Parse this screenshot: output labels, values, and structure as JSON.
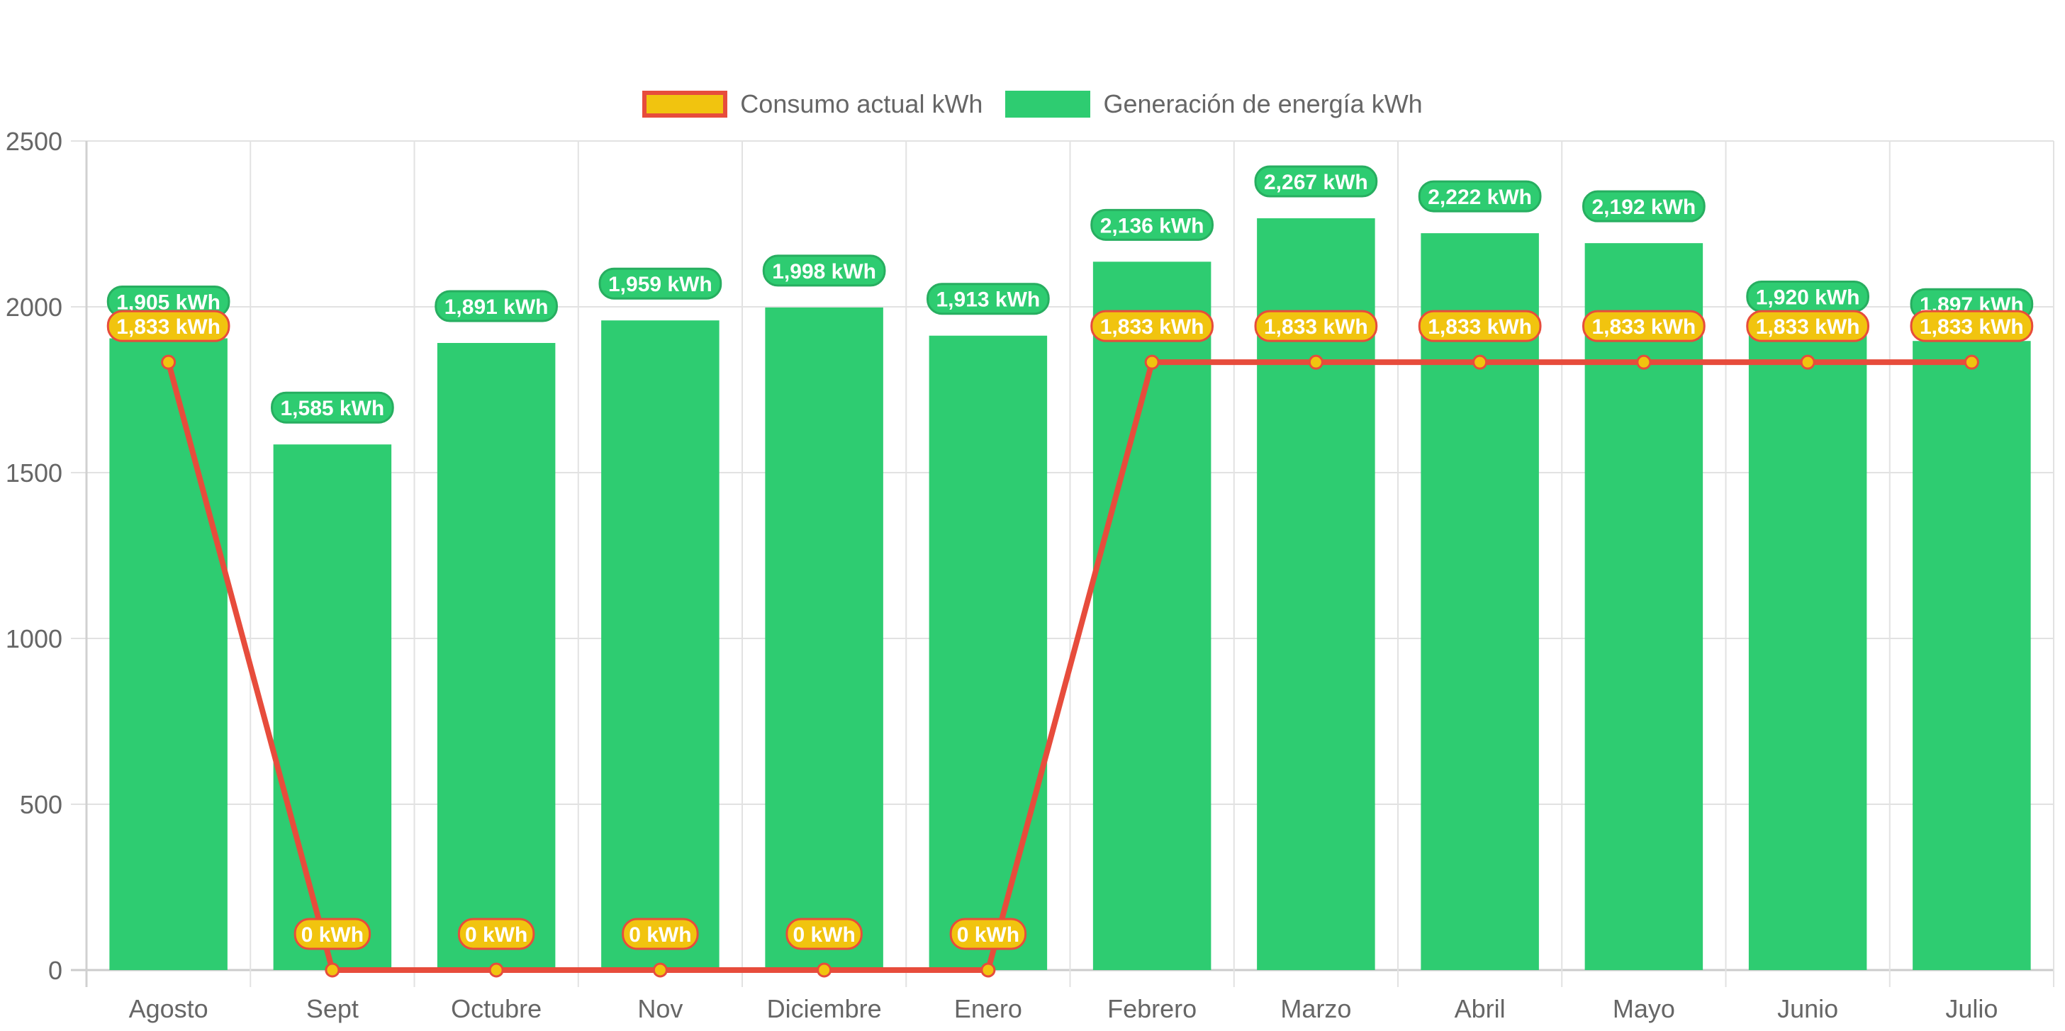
{
  "legend": {
    "items": [
      {
        "label": "Consumo actual kWh",
        "fill": "#f1c40f",
        "border": "#e74c3c"
      },
      {
        "label": "Generación de energía kWh",
        "fill": "#2ecc71",
        "border": "#2ecc71"
      }
    ]
  },
  "chart_data": {
    "type": "bar",
    "title": "",
    "xlabel": "",
    "ylabel": "",
    "ylim": [
      0,
      2500
    ],
    "yticks": [
      0,
      500,
      1000,
      1500,
      2000,
      2500
    ],
    "grid": true,
    "legend_position": "top-center",
    "categories": [
      "Agosto",
      "Sept",
      "Octubre",
      "Nov",
      "Diciembre",
      "Enero",
      "Febrero",
      "Marzo",
      "Abril",
      "Mayo",
      "Junio",
      "Julio"
    ],
    "series": [
      {
        "name": "Consumo actual kWh",
        "type": "line",
        "color": "#e74c3c",
        "point_color": "#f1c40f",
        "values": [
          1833,
          0,
          0,
          0,
          0,
          0,
          1833,
          1833,
          1833,
          1833,
          1833,
          1833
        ],
        "data_labels": [
          "1,833 kWh",
          "0 kWh",
          "0 kWh",
          "0 kWh",
          "0 kWh",
          "0 kWh",
          "1,833 kWh",
          "1,833 kWh",
          "1,833 kWh",
          "1,833 kWh",
          "1,833 kWh",
          "1,833 kWh"
        ]
      },
      {
        "name": "Generación de energía kWh",
        "type": "bar",
        "color": "#2ecc71",
        "label_border": "#27ae60",
        "values": [
          1905,
          1585,
          1891,
          1959,
          1998,
          1913,
          2136,
          2267,
          2222,
          2192,
          1920,
          1897
        ],
        "data_labels": [
          "1,905 kWh",
          "1,585 kWh",
          "1,891 kWh",
          "1,959 kWh",
          "1,998 kWh",
          "1,913 kWh",
          "2,136 kWh",
          "2,267 kWh",
          "2,222 kWh",
          "2,192 kWh",
          "1,920 kWh",
          "1,897 kWh"
        ]
      }
    ]
  }
}
